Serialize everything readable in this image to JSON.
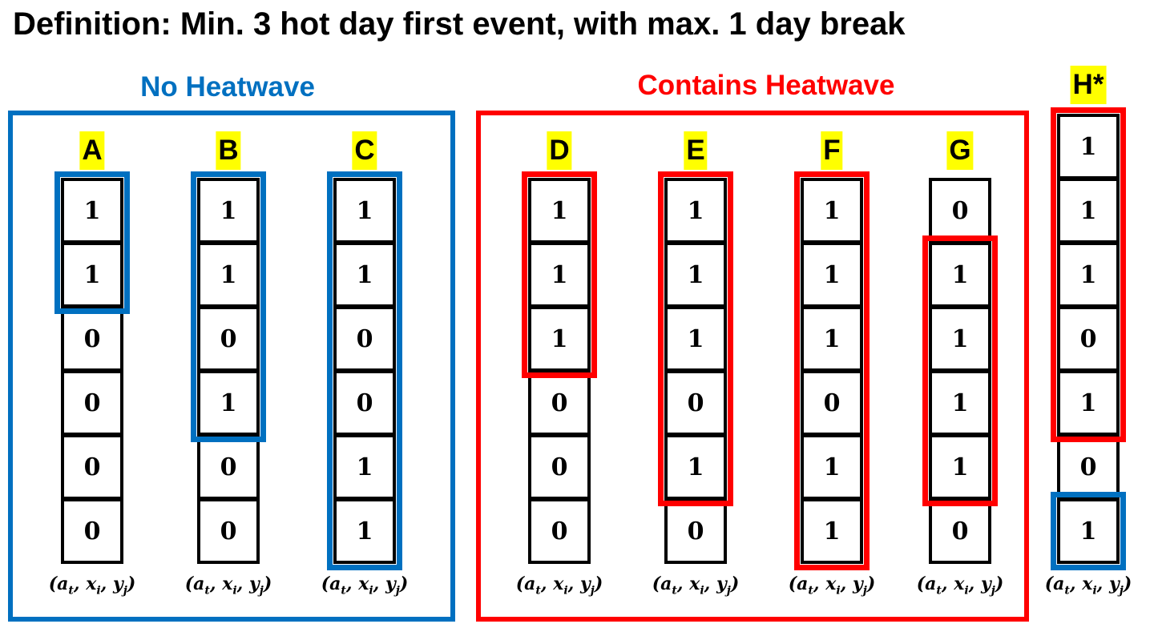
{
  "title": "Definition: Min. 3 hot day first event, with max. 1 day break",
  "colors": {
    "no_heatwave": "#0070c0",
    "heatwave": "#ff0000",
    "label_highlight": "#ffff00"
  },
  "coordinate_label": {
    "open": "(",
    "a": "a",
    "a_sub": "t",
    "x": "x",
    "x_sub": "i",
    "y": "y",
    "y_sub": "j",
    "sep": ", ",
    "close": ")"
  },
  "groups": [
    {
      "label": "No Heatwave",
      "color": "blue"
    },
    {
      "label": "Contains Heatwave",
      "color": "red"
    }
  ],
  "columns": [
    {
      "label": "A",
      "values": [
        1,
        1,
        0,
        0,
        0,
        0
      ],
      "highlights": [
        {
          "start": 0,
          "end": 1,
          "color": "blue"
        }
      ]
    },
    {
      "label": "B",
      "values": [
        1,
        1,
        0,
        1,
        0,
        0
      ],
      "highlights": [
        {
          "start": 0,
          "end": 3,
          "color": "blue"
        }
      ]
    },
    {
      "label": "C",
      "values": [
        1,
        1,
        0,
        0,
        1,
        1
      ],
      "highlights": [
        {
          "start": 0,
          "end": 5,
          "color": "blue"
        }
      ]
    },
    {
      "label": "D",
      "values": [
        1,
        1,
        1,
        0,
        0,
        0
      ],
      "highlights": [
        {
          "start": 0,
          "end": 2,
          "color": "red"
        }
      ]
    },
    {
      "label": "E",
      "values": [
        1,
        1,
        1,
        0,
        1,
        0
      ],
      "highlights": [
        {
          "start": 0,
          "end": 4,
          "color": "red"
        }
      ]
    },
    {
      "label": "F",
      "values": [
        1,
        1,
        1,
        0,
        1,
        1
      ],
      "highlights": [
        {
          "start": 0,
          "end": 5,
          "color": "red"
        }
      ]
    },
    {
      "label": "G",
      "values": [
        0,
        1,
        1,
        1,
        1,
        0
      ],
      "highlights": [
        {
          "start": 1,
          "end": 4,
          "color": "red"
        }
      ]
    },
    {
      "label": "H*",
      "values": [
        1,
        1,
        1,
        0,
        1,
        0,
        1
      ],
      "highlights": [
        {
          "start": 0,
          "end": 4,
          "color": "red"
        },
        {
          "start": 6,
          "end": 6,
          "color": "blue"
        }
      ]
    }
  ]
}
